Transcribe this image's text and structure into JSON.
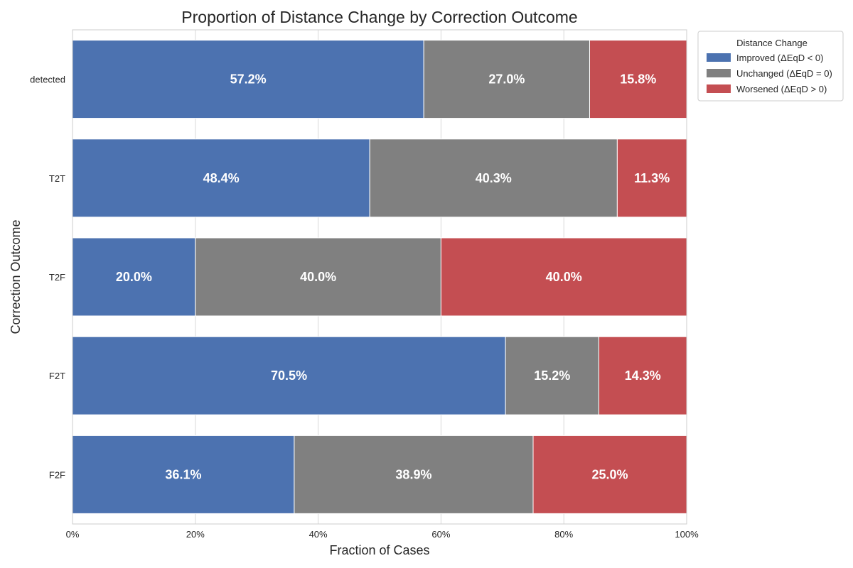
{
  "chart_data": {
    "type": "bar",
    "orientation": "horizontal",
    "stacked": true,
    "title": "Proportion of Distance Change by Correction Outcome",
    "xlabel": "Fraction of Cases",
    "ylabel": "Correction Outcome",
    "xlim": [
      0,
      1
    ],
    "xticks": [
      0,
      0.2,
      0.4,
      0.6,
      0.8,
      1.0
    ],
    "xtick_labels": [
      "0%",
      "20%",
      "40%",
      "60%",
      "80%",
      "100%"
    ],
    "categories": [
      "detected",
      "T2T",
      "T2F",
      "F2T",
      "F2F"
    ],
    "series": [
      {
        "name": "Improved (ΔEqD < 0)",
        "color": "#4c72b0",
        "values": [
          0.572,
          0.484,
          0.2,
          0.705,
          0.361
        ],
        "labels": [
          "57.2%",
          "48.4%",
          "20.0%",
          "70.5%",
          "36.1%"
        ]
      },
      {
        "name": "Unchanged (ΔEqD = 0)",
        "color": "#808080",
        "values": [
          0.27,
          0.403,
          0.4,
          0.152,
          0.389
        ],
        "labels": [
          "27.0%",
          "40.3%",
          "40.0%",
          "15.2%",
          "38.9%"
        ]
      },
      {
        "name": "Worsened (ΔEqD > 0)",
        "color": "#c44e52",
        "values": [
          0.158,
          0.113,
          0.4,
          0.143,
          0.25
        ],
        "labels": [
          "15.8%",
          "11.3%",
          "40.0%",
          "14.3%",
          "25.0%"
        ]
      }
    ],
    "legend": {
      "title": "Distance Change",
      "position": "outside-top-right"
    },
    "grid": true
  }
}
